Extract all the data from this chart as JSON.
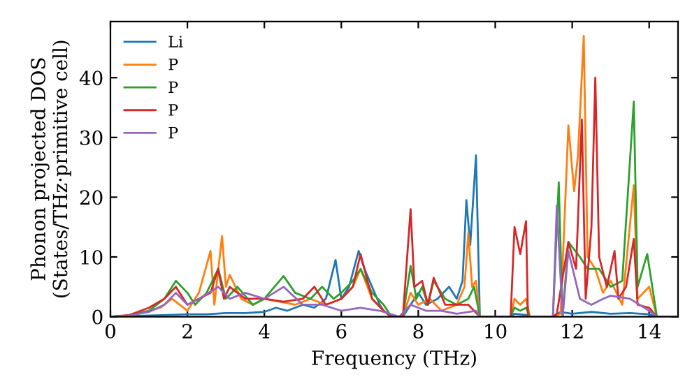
{
  "chart_data": {
    "type": "line",
    "xlabel": "Frequency (THz)",
    "ylabel": "Phonon projected DOS\n(States/THz·primitive cell)",
    "xlim": [
      0,
      14.75
    ],
    "ylim": [
      0,
      49.4
    ],
    "xticks": [
      0,
      2,
      4,
      6,
      8,
      10,
      12,
      14
    ],
    "yticks": [
      0,
      10,
      20,
      30,
      40
    ],
    "grid": false,
    "legend": "top left",
    "series": [
      {
        "name": "Li",
        "color": "#1f77b4",
        "x": [
          0,
          0.5,
          1,
          1.5,
          2,
          2.5,
          3,
          3.5,
          4,
          4.3,
          4.6,
          5,
          5.3,
          5.6,
          5.85,
          6,
          6.2,
          6.45,
          6.6,
          6.8,
          7,
          7.1,
          7.3,
          7.6,
          7.8,
          8,
          8.2,
          8.5,
          8.8,
          9,
          9.15,
          9.25,
          9.35,
          9.5,
          9.6,
          10.4,
          10.5,
          10.8,
          10.9,
          11.5,
          11.7,
          12,
          12.5,
          13,
          13.5,
          14,
          14.2,
          14.75
        ],
        "values": [
          0,
          0.1,
          0.2,
          0.3,
          0.4,
          0.4,
          0.6,
          0.6,
          0.8,
          1.5,
          1,
          2,
          1.5,
          3,
          9.5,
          3,
          5,
          11,
          8,
          5,
          2,
          1,
          0,
          0,
          2,
          4,
          2,
          3,
          5,
          3,
          6,
          19.5,
          12,
          27,
          0,
          0,
          0.5,
          0.3,
          0,
          0,
          0.8,
          0.5,
          0.8,
          0.5,
          0.6,
          0.4,
          0,
          0
        ]
      },
      {
        "name": "P",
        "color": "#ff7f0e",
        "x": [
          0,
          0.5,
          1,
          1.3,
          1.6,
          2,
          2.3,
          2.6,
          2.7,
          2.9,
          3,
          3.1,
          3.4,
          3.7,
          4,
          4.4,
          4.8,
          5.2,
          5.6,
          6,
          6.3,
          6.5,
          6.8,
          7.1,
          7.3,
          7.6,
          7.8,
          8,
          8.3,
          8.6,
          9,
          9.2,
          9.3,
          9.4,
          9.5,
          9.6,
          10.4,
          10.5,
          10.65,
          10.8,
          10.9,
          11.5,
          11.7,
          11.9,
          12.05,
          12.15,
          12.3,
          12.4,
          12.6,
          12.8,
          13,
          13.3,
          13.6,
          13.7,
          14,
          14.2,
          14.75
        ],
        "values": [
          0,
          0.2,
          1,
          1.5,
          3,
          1,
          4,
          11,
          2,
          13.5,
          5,
          7,
          3,
          2,
          3,
          2.5,
          2,
          3,
          2,
          3,
          5,
          8,
          3,
          1,
          0,
          0,
          4,
          2,
          3,
          1,
          2,
          5,
          14,
          5,
          6,
          0,
          0,
          3,
          2,
          3,
          0,
          0,
          0.5,
          32,
          21,
          27,
          47,
          10,
          8,
          4,
          6,
          2,
          22,
          3,
          5,
          0,
          0
        ]
      },
      {
        "name": "P",
        "color": "#2ca02c",
        "x": [
          0,
          0.5,
          1,
          1.4,
          1.7,
          2,
          2.2,
          2.5,
          2.8,
          3,
          3.3,
          3.7,
          4,
          4.5,
          4.8,
          5.2,
          5.5,
          5.8,
          6,
          6.3,
          6.5,
          6.8,
          7.1,
          7.3,
          7.6,
          7.8,
          7.95,
          8.1,
          8.25,
          8.4,
          8.7,
          9,
          9.3,
          9.45,
          9.6,
          10.4,
          10.5,
          10.65,
          10.8,
          10.9,
          11.5,
          11.65,
          11.75,
          11.9,
          12.2,
          12.4,
          12.7,
          13,
          13.3,
          13.6,
          13.7,
          13.95,
          14.2,
          14.75
        ],
        "values": [
          0,
          0.2,
          1,
          3,
          6,
          4,
          2,
          4,
          8,
          3,
          5,
          2,
          3,
          6.8,
          4,
          3,
          5,
          3,
          4,
          6,
          8,
          4,
          2,
          0,
          0,
          8.5,
          3,
          5,
          2,
          6,
          3,
          2,
          3,
          5,
          0,
          0,
          1.5,
          1,
          1.5,
          0,
          0,
          22.5,
          0,
          12.5,
          10,
          8,
          8,
          5,
          6,
          36,
          5,
          10.5,
          0,
          0
        ]
      },
      {
        "name": "P",
        "color": "#d62728",
        "x": [
          0,
          0.5,
          1,
          1.4,
          1.7,
          2,
          2.3,
          2.6,
          2.8,
          2.95,
          3.1,
          3.5,
          4,
          4.5,
          5,
          5.3,
          5.6,
          6,
          6.3,
          6.5,
          6.8,
          7.1,
          7.3,
          7.6,
          7.8,
          7.9,
          8.1,
          8.25,
          8.4,
          8.7,
          9,
          9.3,
          9.6,
          10.4,
          10.5,
          10.65,
          10.8,
          10.85,
          11.5,
          11.6,
          11.9,
          12.1,
          12.25,
          12.35,
          12.5,
          12.6,
          12.7,
          12.9,
          13.1,
          13.2,
          13.4,
          13.6,
          13.7,
          14,
          14.2,
          14.75
        ],
        "values": [
          0,
          0.3,
          1.5,
          3,
          5,
          2,
          3,
          4,
          8,
          3,
          5,
          3,
          3,
          2.5,
          3,
          5,
          2,
          3,
          5,
          10.5,
          3,
          1,
          0,
          0,
          18,
          5,
          6,
          2,
          6.5,
          2,
          2,
          2,
          0,
          0,
          15,
          10.5,
          16,
          0,
          0,
          0.5,
          12.5,
          8,
          33,
          3,
          15,
          40,
          10,
          5,
          11,
          3,
          5,
          13,
          2,
          1.5,
          0,
          0
        ]
      },
      {
        "name": "P",
        "color": "#9467bd",
        "x": [
          0,
          0.5,
          1,
          1.4,
          1.7,
          2,
          2.3,
          2.8,
          3.1,
          3.5,
          4,
          4.5,
          5,
          5.5,
          6,
          6.5,
          7,
          7.5,
          7.8,
          8.2,
          8.6,
          9,
          9.5,
          9.6,
          11.5,
          11.6,
          11.75,
          11.9,
          12.2,
          12.5,
          12.8,
          13,
          13.5,
          14,
          14.2,
          14.75
        ],
        "values": [
          0,
          0.2,
          0.8,
          2,
          4,
          2,
          3,
          5,
          3,
          4,
          3,
          5,
          2,
          2,
          1,
          1.5,
          1,
          0,
          2,
          1,
          1,
          0.5,
          1,
          0,
          0,
          18.6,
          0,
          11,
          3,
          2,
          3,
          3.5,
          3,
          1,
          0,
          0
        ]
      }
    ]
  }
}
